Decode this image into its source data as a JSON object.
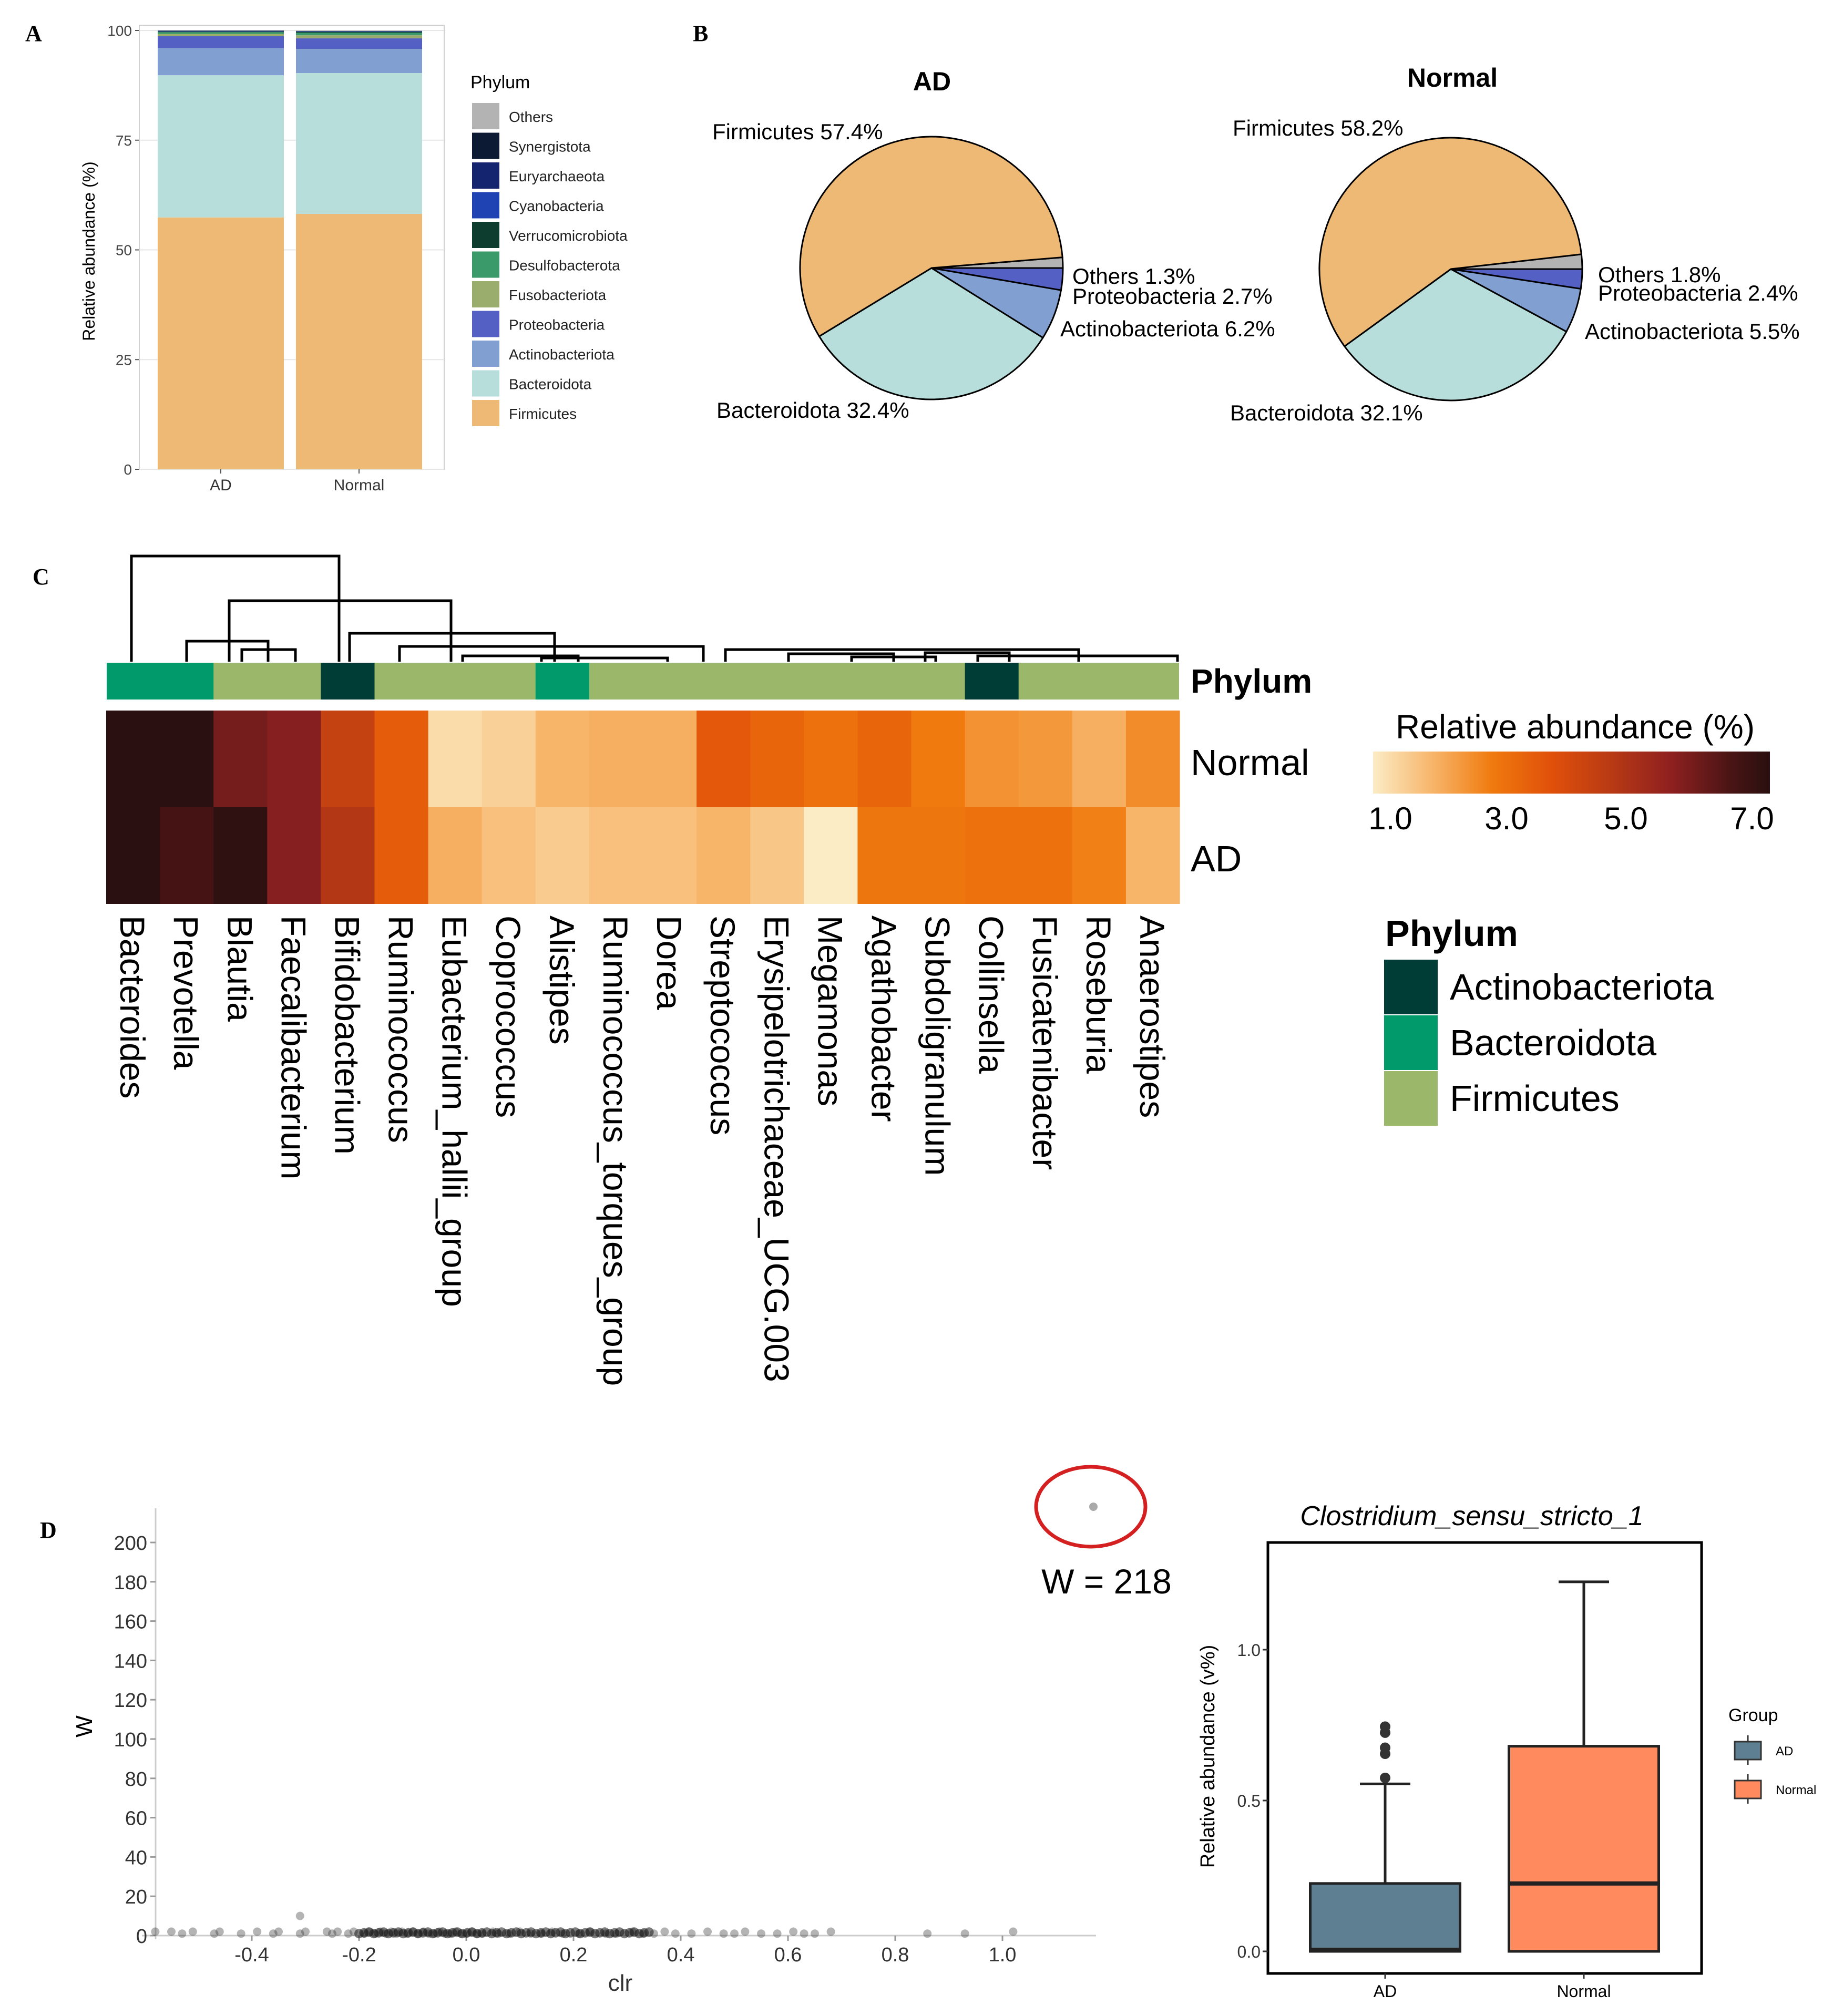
{
  "colors": {
    "Others": "#b3b3b3",
    "Synergistota": "#0c1a33",
    "Euryarchaeota": "#14246e",
    "Cyanobacteria": "#1f43b3",
    "Verrucomicrobiota": "#0c3d2e",
    "Desulfobacterota": "#3a9a6a",
    "Fusobacteriota": "#9aad6c",
    "Proteobacteria": "#5460c4",
    "Actinobacteriota": "#829fd2",
    "Bacteroidota": "#b8dedb",
    "Firmicutes": "#edb975",
    "hm_Actinobacteriota": "#003d37",
    "hm_Bacteroidota": "#009a6b",
    "hm_Firmicutes": "#9bb76a",
    "box_AD": "#5e7f91",
    "box_Normal": "#ff8a5e",
    "circle": "#d42020"
  },
  "panel_labels": {
    "a": "A",
    "b": "B",
    "c": "C",
    "d": "D"
  },
  "panelA": {
    "chart_data": {
      "type": "bar",
      "stacked": true,
      "categories": [
        "AD",
        "Normal"
      ],
      "ylabel": "Relative abundance (%)",
      "ylim": [
        0,
        100
      ],
      "yticks": [
        0,
        25,
        50,
        75,
        100
      ],
      "legend_title": "Phylum",
      "legend": [
        "Others",
        "Synergistota",
        "Euryarchaeota",
        "Cyanobacteria",
        "Verrucomicrobiota",
        "Desulfobacterota",
        "Fusobacteriota",
        "Proteobacteria",
        "Actinobacteriota",
        "Bacteroidota",
        "Firmicutes"
      ],
      "series": [
        {
          "name": "Firmicutes",
          "values": [
            57.4,
            58.2
          ]
        },
        {
          "name": "Bacteroidota",
          "values": [
            32.4,
            32.1
          ]
        },
        {
          "name": "Actinobacteriota",
          "values": [
            6.2,
            5.5
          ]
        },
        {
          "name": "Proteobacteria",
          "values": [
            2.7,
            2.4
          ]
        },
        {
          "name": "Fusobacteriota",
          "values": [
            0.5,
            0.7
          ]
        },
        {
          "name": "Desulfobacterota",
          "values": [
            0.4,
            0.6
          ]
        },
        {
          "name": "Verrucomicrobiota",
          "values": [
            0.2,
            0.2
          ]
        },
        {
          "name": "Cyanobacteria",
          "values": [
            0.1,
            0.1
          ]
        },
        {
          "name": "Euryarchaeota",
          "values": [
            0.05,
            0.05
          ]
        },
        {
          "name": "Synergistota",
          "values": [
            0.05,
            0.05
          ]
        },
        {
          "name": "Others",
          "values": [
            0.0,
            0.1
          ]
        }
      ]
    }
  },
  "panelB": {
    "chart_data": [
      {
        "type": "pie",
        "title": "AD",
        "slices": [
          {
            "name": "Firmicutes",
            "value": 57.4,
            "label": "Firmicutes 57.4%"
          },
          {
            "name": "Bacteroidota",
            "value": 32.4,
            "label": "Bacteroidota 32.4%"
          },
          {
            "name": "Actinobacteriota",
            "value": 6.2,
            "label": "Actinobacteriota 6.2%"
          },
          {
            "name": "Proteobacteria",
            "value": 2.7,
            "label": "Proteobacteria 2.7%"
          },
          {
            "name": "Others",
            "value": 1.3,
            "label": "Others 1.3%"
          }
        ]
      },
      {
        "type": "pie",
        "title": "Normal",
        "slices": [
          {
            "name": "Firmicutes",
            "value": 58.2,
            "label": "Firmicutes 58.2%"
          },
          {
            "name": "Bacteroidota",
            "value": 32.1,
            "label": "Bacteroidota 32.1%"
          },
          {
            "name": "Actinobacteriota",
            "value": 5.5,
            "label": "Actinobacteriota 5.5%"
          },
          {
            "name": "Proteobacteria",
            "value": 2.4,
            "label": "Proteobacteria 2.4%"
          },
          {
            "name": "Others",
            "value": 1.8,
            "label": "Others 1.8%"
          }
        ]
      }
    ]
  },
  "panelC": {
    "chart_data": {
      "type": "heatmap",
      "rows": [
        "Normal",
        "AD"
      ],
      "annotation_title": "Phylum",
      "genera": [
        "Bacteroides",
        "Prevotella",
        "Blautia",
        "Faecalibacterium",
        "Bifidobacterium",
        "Ruminococcus",
        "Eubacterium_hallii_group",
        "Coprococcus",
        "Alistipes",
        "Ruminococcus_torques_group",
        "Dorea",
        "Streptococcus",
        "Erysipelotrichaceae_UCG.003",
        "Megamonas",
        "Agathobacter",
        "Subdoligranulum",
        "Collinsella",
        "Fusicatenibacter",
        "Roseburia",
        "Anaerostipes"
      ],
      "phylum": [
        "Bacteroidota",
        "Bacteroidota",
        "Firmicutes",
        "Firmicutes",
        "Actinobacteriota",
        "Firmicutes",
        "Firmicutes",
        "Firmicutes",
        "Bacteroidota",
        "Firmicutes",
        "Firmicutes",
        "Firmicutes",
        "Firmicutes",
        "Firmicutes",
        "Firmicutes",
        "Firmicutes",
        "Actinobacteriota",
        "Firmicutes",
        "Firmicutes",
        "Firmicutes"
      ],
      "values": {
        "Normal": [
          7.0,
          7.0,
          5.8,
          5.6,
          4.2,
          3.2,
          0.8,
          1.0,
          1.5,
          1.6,
          1.6,
          3.3,
          3.0,
          2.7,
          3.0,
          2.5,
          2.1,
          2.0,
          1.6,
          2.2
        ],
        "AD": [
          7.0,
          6.4,
          6.9,
          5.6,
          4.6,
          3.2,
          1.6,
          1.3,
          1.1,
          1.3,
          1.3,
          1.5,
          1.2,
          0.5,
          2.6,
          2.6,
          2.7,
          2.7,
          2.4,
          1.5
        ]
      },
      "colorbar": {
        "title": "Relative abundance (%)",
        "ticks": [
          "1.0",
          "3.0",
          "5.0",
          "7.0"
        ],
        "range": [
          0.5,
          7.0
        ]
      },
      "legend": [
        "Actinobacteriota",
        "Bacteroidota",
        "Firmicutes"
      ]
    }
  },
  "panelD": {
    "volcano": {
      "chart_data": {
        "type": "scatter",
        "xlabel": "clr",
        "ylabel": "W",
        "xlim": [
          -0.6,
          1.18
        ],
        "ylim": [
          0,
          215
        ],
        "xticks": [
          "-0.4",
          "-0.2",
          "0.0",
          "0.2",
          "0.4",
          "0.6",
          "0.8",
          "1.0"
        ],
        "yticks": [
          "0",
          "20",
          "40",
          "60",
          "80",
          "100",
          "120",
          "140",
          "160",
          "180",
          "200"
        ],
        "highlight": {
          "x": 1.17,
          "y": 218,
          "label": "W = 218"
        },
        "points": [
          [
            -0.58,
            2
          ],
          [
            -0.55,
            2
          ],
          [
            -0.53,
            1
          ],
          [
            -0.51,
            2
          ],
          [
            -0.47,
            1
          ],
          [
            -0.46,
            2
          ],
          [
            -0.42,
            1
          ],
          [
            -0.39,
            2
          ],
          [
            -0.36,
            1
          ],
          [
            -0.35,
            2
          ],
          [
            -0.31,
            1
          ],
          [
            -0.31,
            10
          ],
          [
            -0.3,
            2
          ],
          [
            -0.26,
            2
          ],
          [
            -0.25,
            1
          ],
          [
            -0.24,
            2
          ],
          [
            -0.22,
            1
          ],
          [
            -0.21,
            2
          ],
          [
            -0.19,
            1
          ],
          [
            -0.18,
            2
          ],
          [
            -0.17,
            1
          ],
          [
            -0.16,
            2
          ],
          [
            -0.15,
            1
          ],
          [
            -0.14,
            2
          ],
          [
            -0.13,
            1
          ],
          [
            -0.12,
            2
          ],
          [
            -0.11,
            1
          ],
          [
            -0.1,
            2
          ],
          [
            -0.09,
            1
          ],
          [
            -0.08,
            2
          ],
          [
            -0.07,
            1
          ],
          [
            -0.06,
            1
          ],
          [
            -0.05,
            2
          ],
          [
            -0.04,
            1
          ],
          [
            -0.03,
            1
          ],
          [
            -0.02,
            2
          ],
          [
            -0.01,
            1
          ],
          [
            0.0,
            1
          ],
          [
            0.01,
            2
          ],
          [
            0.02,
            1
          ],
          [
            0.03,
            1
          ],
          [
            0.05,
            2
          ],
          [
            0.06,
            1
          ],
          [
            0.08,
            1
          ],
          [
            0.1,
            2
          ],
          [
            0.12,
            1
          ],
          [
            0.14,
            1
          ],
          [
            0.16,
            2
          ],
          [
            0.18,
            1
          ],
          [
            0.21,
            1
          ],
          [
            0.23,
            2
          ],
          [
            0.26,
            1
          ],
          [
            0.28,
            1
          ],
          [
            0.31,
            2
          ],
          [
            0.33,
            1
          ],
          [
            0.35,
            1
          ],
          [
            0.37,
            2
          ],
          [
            0.39,
            1
          ],
          [
            0.42,
            1
          ],
          [
            0.45,
            2
          ],
          [
            0.48,
            1
          ],
          [
            0.5,
            1
          ],
          [
            0.52,
            2
          ],
          [
            0.55,
            1
          ],
          [
            0.58,
            1
          ],
          [
            0.61,
            2
          ],
          [
            0.63,
            1
          ],
          [
            0.65,
            1
          ],
          [
            0.68,
            2
          ],
          [
            0.86,
            1
          ],
          [
            0.93,
            1
          ],
          [
            1.02,
            2
          ]
        ]
      }
    },
    "boxplot": {
      "chart_data": {
        "type": "box",
        "title": "Clostridium_sensu_stricto_1",
        "ylabel": "Relative abundance (v%)",
        "categories": [
          "AD",
          "Normal"
        ],
        "ylim": [
          -0.03,
          1.3
        ],
        "yticks": [
          "0.0",
          "0.5",
          "1.0"
        ],
        "legend_title": "Group",
        "boxes": [
          {
            "group": "AD",
            "min": 0.0,
            "q1": 0.0,
            "median": 0.005,
            "q3": 0.225,
            "max": 0.555,
            "outliers": [
              0.575,
              0.655,
              0.675,
              0.725,
              0.745
            ]
          },
          {
            "group": "Normal",
            "min": 0.0,
            "q1": 0.0,
            "median": 0.225,
            "q3": 0.68,
            "max": 1.225,
            "outliers": []
          }
        ]
      }
    }
  }
}
